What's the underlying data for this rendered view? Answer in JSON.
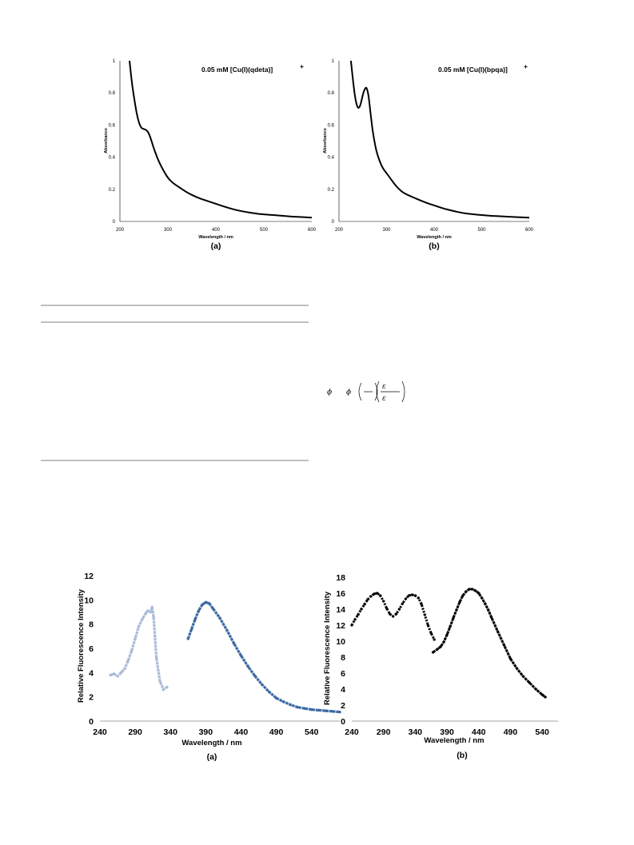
{
  "chart_data": [
    {
      "type": "line",
      "panel": "(a)",
      "title": "0.05 mM [Cu(I)(qdeta)]",
      "title_sup": "+",
      "xlabel": "Wavelength / nm",
      "ylabel": "Absorbance",
      "caption": "(a)",
      "xlim": [
        200,
        600
      ],
      "ylim": [
        0,
        1
      ],
      "xticks": [
        "200",
        "300",
        "400",
        "500",
        "600"
      ],
      "yticks": [
        "0",
        "0.2",
        "0.4",
        "0.6",
        "0.8",
        "1"
      ],
      "series": [
        {
          "color": "#000000",
          "x": [
            220,
            225,
            230,
            235,
            240,
            245,
            250,
            255,
            260,
            265,
            270,
            275,
            280,
            290,
            300,
            310,
            320,
            330,
            340,
            360,
            380,
            400,
            420,
            440,
            460,
            480,
            500,
            520,
            540,
            560,
            580,
            600
          ],
          "y": [
            1.0,
            0.86,
            0.76,
            0.67,
            0.61,
            0.58,
            0.575,
            0.57,
            0.55,
            0.51,
            0.46,
            0.42,
            0.38,
            0.32,
            0.27,
            0.24,
            0.22,
            0.2,
            0.18,
            0.15,
            0.13,
            0.11,
            0.09,
            0.072,
            0.06,
            0.05,
            0.044,
            0.04,
            0.035,
            0.03,
            0.027,
            0.024
          ]
        }
      ]
    },
    {
      "type": "line",
      "panel": "(b)",
      "title": "0.05 mM [Cu(I)(bpqa)]",
      "title_sup": "+",
      "xlabel": "Wavelength / nm",
      "ylabel": "Absorbance",
      "caption": "(b)",
      "xlim": [
        200,
        600
      ],
      "ylim": [
        0,
        1
      ],
      "xticks": [
        "200",
        "300",
        "400",
        "500",
        "600"
      ],
      "yticks": [
        "0",
        "0.2",
        "0.4",
        "0.6",
        "0.8",
        "1"
      ],
      "series": [
        {
          "color": "#000000",
          "x": [
            225,
            230,
            235,
            240,
            245,
            250,
            255,
            258,
            262,
            266,
            270,
            275,
            280,
            290,
            300,
            310,
            320,
            330,
            340,
            360,
            380,
            400,
            420,
            440,
            460,
            480,
            500,
            520,
            540,
            560,
            580,
            600
          ],
          "y": [
            1.0,
            0.86,
            0.75,
            0.7,
            0.72,
            0.79,
            0.83,
            0.835,
            0.79,
            0.68,
            0.58,
            0.49,
            0.42,
            0.34,
            0.3,
            0.26,
            0.22,
            0.19,
            0.17,
            0.145,
            0.12,
            0.1,
            0.08,
            0.065,
            0.052,
            0.045,
            0.04,
            0.035,
            0.032,
            0.029,
            0.026,
            0.024
          ]
        }
      ]
    },
    {
      "type": "scatter",
      "panel": "(a)",
      "xlabel": "Wavelength / nm",
      "ylabel": "Relative Fluorescence Intensity",
      "caption": "(a)",
      "xlim": [
        240,
        580
      ],
      "ylim": [
        0,
        12
      ],
      "xticks": [
        "240",
        "290",
        "340",
        "390",
        "440",
        "490",
        "540"
      ],
      "yticks": [
        "0",
        "2",
        "4",
        "6",
        "8",
        "10",
        "12"
      ],
      "series": [
        {
          "color": "#a9bcd8",
          "x": [
            255,
            260,
            265,
            270,
            275,
            280,
            285,
            290,
            295,
            300,
            305,
            308,
            312,
            314,
            316,
            318,
            320,
            325,
            330,
            335
          ],
          "y": [
            3.8,
            3.9,
            3.7,
            4.0,
            4.3,
            5.0,
            5.8,
            6.8,
            7.8,
            8.4,
            8.9,
            9.1,
            9.0,
            9.4,
            8.6,
            7.0,
            5.2,
            3.3,
            2.6,
            2.8
          ]
        },
        {
          "color": "#3c6aa5",
          "x": [
            365,
            370,
            375,
            380,
            385,
            390,
            395,
            400,
            410,
            420,
            430,
            440,
            450,
            460,
            470,
            480,
            490,
            500,
            510,
            520,
            530,
            540,
            550,
            560,
            570,
            580
          ],
          "y": [
            6.8,
            7.6,
            8.4,
            9.1,
            9.6,
            9.8,
            9.7,
            9.3,
            8.5,
            7.5,
            6.4,
            5.4,
            4.5,
            3.7,
            3.0,
            2.4,
            1.9,
            1.6,
            1.35,
            1.15,
            1.05,
            0.95,
            0.9,
            0.85,
            0.8,
            0.75
          ]
        }
      ]
    },
    {
      "type": "scatter",
      "panel": "(b)",
      "xlabel": "Wavelength / nm",
      "ylabel": "Relative Fluorescence Intensity",
      "caption": "(b)",
      "xlim": [
        240,
        565
      ],
      "ylim": [
        0,
        18
      ],
      "xticks": [
        "240",
        "290",
        "340",
        "390",
        "440",
        "490",
        "540"
      ],
      "yticks": [
        "0",
        "2",
        "4",
        "6",
        "8",
        "10",
        "12",
        "14",
        "16",
        "18"
      ],
      "series": [
        {
          "color": "#000000",
          "dashed": true,
          "x": [
            240,
            245,
            250,
            255,
            260,
            265,
            270,
            275,
            280,
            285,
            290,
            295,
            300,
            305,
            310,
            315,
            320,
            325,
            330,
            335,
            340,
            345,
            350,
            355,
            360,
            365,
            370
          ],
          "y": [
            12.0,
            12.7,
            13.3,
            14.0,
            14.6,
            15.2,
            15.6,
            15.9,
            16.0,
            15.7,
            15.0,
            14.1,
            13.4,
            13.1,
            13.4,
            14.0,
            14.7,
            15.3,
            15.7,
            15.8,
            15.7,
            15.4,
            14.6,
            13.3,
            12.0,
            11.0,
            10.2
          ]
        },
        {
          "color": "#000000",
          "x": [
            368,
            375,
            380,
            385,
            390,
            395,
            400,
            405,
            410,
            415,
            420,
            425,
            430,
            435,
            440,
            445,
            450,
            455,
            460,
            470,
            480,
            490,
            500,
            510,
            520,
            530,
            540,
            545
          ],
          "y": [
            8.6,
            9.0,
            9.3,
            9.9,
            10.8,
            11.8,
            12.9,
            13.9,
            14.9,
            15.7,
            16.2,
            16.5,
            16.5,
            16.3,
            16.0,
            15.4,
            14.7,
            13.9,
            13.0,
            11.2,
            9.5,
            7.8,
            6.6,
            5.6,
            4.8,
            4.0,
            3.3,
            3.0
          ]
        }
      ]
    }
  ],
  "equation": {
    "phi": "ϕ",
    "eps": "ε"
  }
}
